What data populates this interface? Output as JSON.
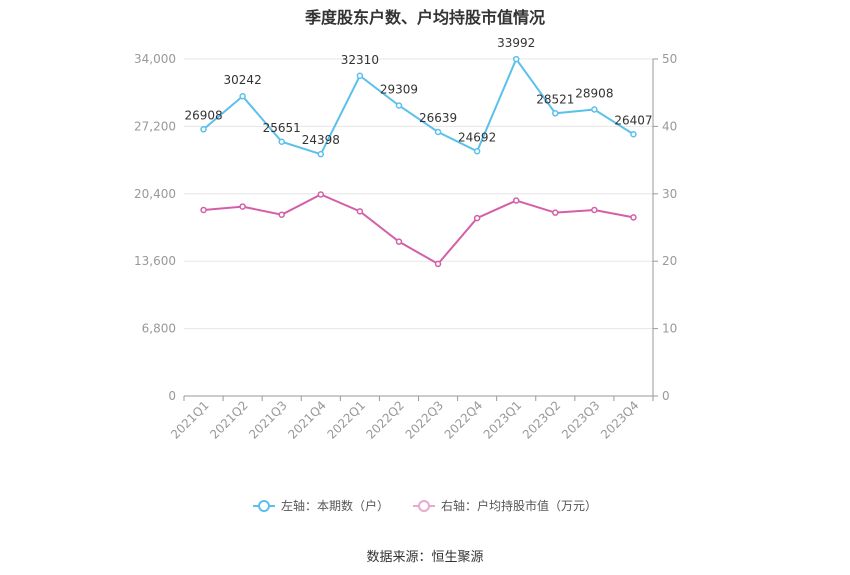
{
  "title": "季度股东户数、户均持股市值情况",
  "source": "数据来源：恒生聚源",
  "colors": {
    "left_series": "#5bc0eb",
    "right_series": "#d45fa8",
    "grid": "#e6e6e6"
  },
  "chart_data": {
    "type": "line",
    "categories": [
      "2021Q1",
      "2021Q2",
      "2021Q3",
      "2021Q4",
      "2022Q1",
      "2022Q2",
      "2022Q3",
      "2022Q4",
      "2023Q1",
      "2023Q2",
      "2023Q3",
      "2023Q4"
    ],
    "series": [
      {
        "name": "左轴：本期数（户）",
        "axis": "left",
        "color": "#5bc0eb",
        "values": [
          26908,
          30242,
          25651,
          24398,
          32310,
          29309,
          26639,
          24692,
          33992,
          28521,
          28908,
          26407
        ],
        "show_labels": true
      },
      {
        "name": "右轴：户均持股市值（万元）",
        "axis": "right",
        "color": "#d45fa8",
        "values": [
          27.6,
          28.1,
          26.9,
          29.9,
          27.4,
          22.9,
          19.6,
          26.4,
          29.0,
          27.2,
          27.6,
          26.5
        ],
        "show_labels": false
      }
    ],
    "left_axis": {
      "ylim": [
        0,
        34000
      ],
      "ticks": [
        0,
        6800,
        13600,
        20400,
        27200,
        34000
      ],
      "tick_labels": [
        "0",
        "6,800",
        "13,600",
        "20,400",
        "27,200",
        "34,000"
      ]
    },
    "right_axis": {
      "ylim": [
        0,
        50
      ],
      "ticks": [
        0,
        10,
        20,
        30,
        40,
        50
      ],
      "tick_labels": [
        "0",
        "10",
        "20",
        "30",
        "40",
        "50"
      ]
    },
    "grid": true,
    "legend_position": "bottom"
  }
}
